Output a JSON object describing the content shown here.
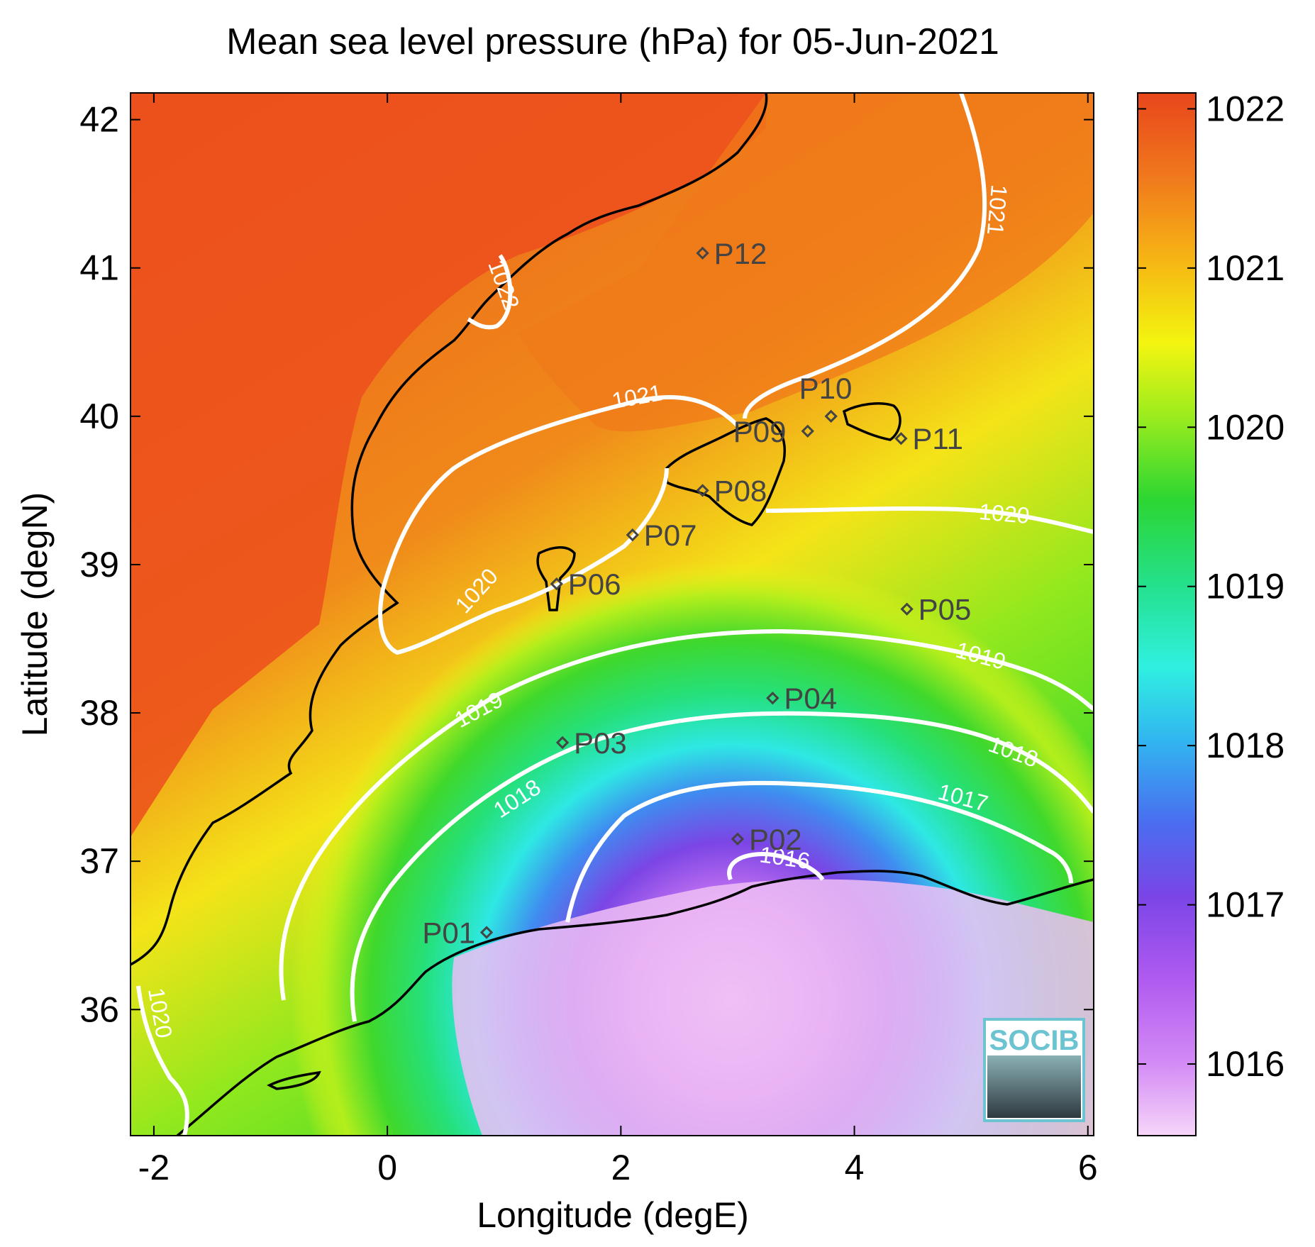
{
  "title": "Mean sea level pressure (hPa) for 05-Jun-2021",
  "xlabel": "Longitude (degE)",
  "ylabel": "Latitude (degN)",
  "x_ticks": [
    "-2",
    "0",
    "2",
    "4",
    "6"
  ],
  "y_ticks": [
    "36",
    "37",
    "38",
    "39",
    "40",
    "41",
    "42"
  ],
  "colorbar": {
    "ticks": [
      "1016",
      "1017",
      "1018",
      "1019",
      "1020",
      "1021",
      "1022"
    ],
    "range": [
      1015.55,
      1022.1
    ],
    "colors": [
      "#f3c6f5",
      "#b85bf0",
      "#6b3fe0",
      "#3a9af0",
      "#2ff0e0",
      "#22e07a",
      "#2fd62b",
      "#a6ee1e",
      "#f3f50f",
      "#f8c814",
      "#f5901a",
      "#ee5a1e",
      "#e8461c"
    ]
  },
  "chart_data": {
    "type": "map",
    "variable": "Mean sea level pressure (hPa)",
    "date": "05-Jun-2021",
    "xlim": [
      -2.2,
      6.05
    ],
    "ylim": [
      35.15,
      42.18
    ],
    "stations": [
      {
        "name": "P01",
        "lon": 0.85,
        "lat": 36.52
      },
      {
        "name": "P02",
        "lon": 3.0,
        "lat": 37.15
      },
      {
        "name": "P03",
        "lon": 1.5,
        "lat": 37.8
      },
      {
        "name": "P04",
        "lon": 3.3,
        "lat": 38.1
      },
      {
        "name": "P05",
        "lon": 4.45,
        "lat": 38.7
      },
      {
        "name": "P06",
        "lon": 1.45,
        "lat": 38.87
      },
      {
        "name": "P07",
        "lon": 2.1,
        "lat": 39.2
      },
      {
        "name": "P08",
        "lon": 2.7,
        "lat": 39.5
      },
      {
        "name": "P09",
        "lon": 3.6,
        "lat": 39.9
      },
      {
        "name": "P10",
        "lon": 3.8,
        "lat": 40.0
      },
      {
        "name": "P11",
        "lon": 4.4,
        "lat": 39.85
      },
      {
        "name": "P12",
        "lon": 2.7,
        "lat": 41.1
      }
    ],
    "contour_labels": [
      "1022",
      "1021",
      "1021",
      "1020",
      "1020",
      "1020",
      "1019",
      "1019",
      "1018",
      "1018",
      "1017",
      "1016"
    ]
  },
  "logo": {
    "text": "SOCIB"
  }
}
